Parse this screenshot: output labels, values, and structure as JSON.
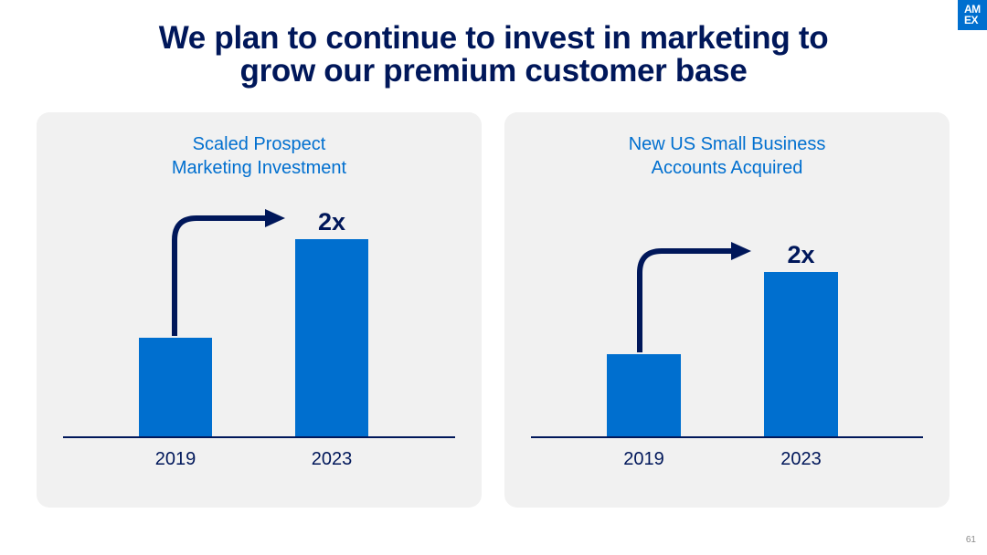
{
  "title": {
    "line1": "We plan to continue to invest in marketing to",
    "line2": "grow our premium customer base"
  },
  "logo": {
    "line1": "AM",
    "line2": "EX"
  },
  "page_number": "61",
  "colors": {
    "title": "#00175a",
    "accent": "#006fcf",
    "bar": "#006fcf",
    "arrow": "#00175a",
    "axis": "#00175a",
    "panel_bg": "#f1f1f1"
  },
  "panels": [
    {
      "title_line1": "Scaled Prospect",
      "title_line2": "Marketing Investment"
    },
    {
      "title_line1": "New US Small Business",
      "title_line2": "Accounts Acquired"
    }
  ],
  "chart_data": [
    {
      "type": "bar",
      "title": "Scaled Prospect Marketing Investment",
      "categories": [
        "2019",
        "2023"
      ],
      "values": [
        1,
        2
      ],
      "annotation": "2x",
      "ylim": [
        0,
        2.3
      ]
    },
    {
      "type": "bar",
      "title": "New US Small Business Accounts Acquired",
      "categories": [
        "2019",
        "2023"
      ],
      "values": [
        1,
        2
      ],
      "annotation": "2x",
      "ylim": [
        0,
        2.2
      ]
    }
  ]
}
